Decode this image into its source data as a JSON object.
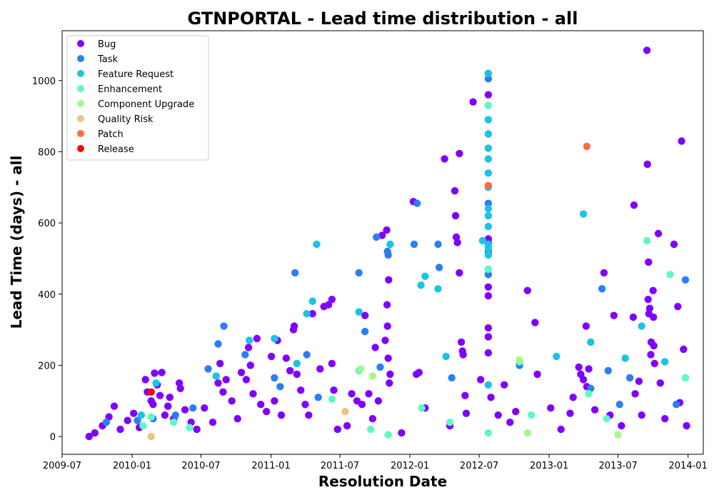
{
  "chart_data": {
    "type": "scatter",
    "title": "GTNPORTAL - Lead time distribution - all",
    "xlabel": "Resolution Date",
    "ylabel": "Lead Time (days) - all",
    "xlim": [
      "2009-07-01",
      "2014-02-10"
    ],
    "ylim": [
      -50,
      1140
    ],
    "xticks": [
      "2009-07-01",
      "2010-01-01",
      "2010-07-01",
      "2011-01-01",
      "2011-07-01",
      "2012-01-01",
      "2012-07-01",
      "2013-01-01",
      "2013-07-01",
      "2014-01-01"
    ],
    "xtick_labels": [
      "2009-07",
      "2010-01",
      "2010-07",
      "2011-01",
      "2011-07",
      "2012-01",
      "2012-07",
      "2013-01",
      "2013-07",
      "2014-01"
    ],
    "yticks": [
      0,
      200,
      400,
      600,
      800,
      1000
    ],
    "legend_position": "top-left",
    "grid": false,
    "series": [
      {
        "name": "Bug",
        "color": "#8000ff",
        "points": [
          [
            "2009-09-10",
            0
          ],
          [
            "2009-09-25",
            10
          ],
          [
            "2009-10-15",
            30
          ],
          [
            "2009-11-01",
            55
          ],
          [
            "2009-11-15",
            85
          ],
          [
            "2009-12-01",
            20
          ],
          [
            "2009-12-20",
            45
          ],
          [
            "2010-01-05",
            65
          ],
          [
            "2010-01-20",
            25
          ],
          [
            "2010-02-05",
            160
          ],
          [
            "2010-02-10",
            125
          ],
          [
            "2010-02-20",
            100
          ],
          [
            "2010-02-25",
            90
          ],
          [
            "2010-03-01",
            178
          ],
          [
            "2010-03-08",
            145
          ],
          [
            "2010-03-15",
            115
          ],
          [
            "2010-03-20",
            180
          ],
          [
            "2010-03-28",
            60
          ],
          [
            "2010-04-05",
            85
          ],
          [
            "2010-04-10",
            110
          ],
          [
            "2010-04-20",
            50
          ],
          [
            "2010-05-05",
            150
          ],
          [
            "2010-05-08",
            135
          ],
          [
            "2010-05-20",
            75
          ],
          [
            "2010-06-05",
            40
          ],
          [
            "2010-06-20",
            20
          ],
          [
            "2010-07-10",
            80
          ],
          [
            "2010-08-01",
            40
          ],
          [
            "2010-08-15",
            150
          ],
          [
            "2010-08-20",
            205
          ],
          [
            "2010-08-28",
            125
          ],
          [
            "2010-09-05",
            160
          ],
          [
            "2010-09-20",
            100
          ],
          [
            "2010-10-05",
            50
          ],
          [
            "2010-10-15",
            180
          ],
          [
            "2010-10-28",
            160
          ],
          [
            "2010-11-03",
            250
          ],
          [
            "2010-11-08",
            200
          ],
          [
            "2010-11-15",
            120
          ],
          [
            "2010-11-25",
            275
          ],
          [
            "2010-12-05",
            90
          ],
          [
            "2010-12-20",
            70
          ],
          [
            "2011-01-02",
            225
          ],
          [
            "2011-01-10",
            100
          ],
          [
            "2011-01-18",
            270
          ],
          [
            "2011-01-28",
            60
          ],
          [
            "2011-02-10",
            220
          ],
          [
            "2011-02-20",
            185
          ],
          [
            "2011-03-01",
            300
          ],
          [
            "2011-03-03",
            310
          ],
          [
            "2011-03-10",
            175
          ],
          [
            "2011-03-20",
            130
          ],
          [
            "2011-04-01",
            90
          ],
          [
            "2011-04-10",
            60
          ],
          [
            "2011-04-20",
            345
          ],
          [
            "2011-05-10",
            190
          ],
          [
            "2011-05-20",
            365
          ],
          [
            "2011-06-01",
            370
          ],
          [
            "2011-06-10",
            385
          ],
          [
            "2011-06-10",
            205
          ],
          [
            "2011-06-15",
            130
          ],
          [
            "2011-06-25",
            20
          ],
          [
            "2011-07-20",
            30
          ],
          [
            "2011-08-01",
            120
          ],
          [
            "2011-08-15",
            100
          ],
          [
            "2011-08-28",
            90
          ],
          [
            "2011-09-05",
            340
          ],
          [
            "2011-09-15",
            120
          ],
          [
            "2011-09-25",
            50
          ],
          [
            "2011-10-02",
            250
          ],
          [
            "2011-10-10",
            100
          ],
          [
            "2011-10-20",
            565
          ],
          [
            "2011-10-28",
            270
          ],
          [
            "2011-11-01",
            580
          ],
          [
            "2011-11-02",
            370
          ],
          [
            "2011-11-03",
            310
          ],
          [
            "2011-11-05",
            220
          ],
          [
            "2011-11-06",
            440
          ],
          [
            "2011-11-08",
            150
          ],
          [
            "2011-11-10",
            175
          ],
          [
            "2011-12-10",
            10
          ],
          [
            "2012-01-10",
            660
          ],
          [
            "2012-01-18",
            175
          ],
          [
            "2012-01-25",
            180
          ],
          [
            "2012-02-10",
            80
          ],
          [
            "2012-04-01",
            780
          ],
          [
            "2012-04-15",
            30
          ],
          [
            "2012-04-28",
            690
          ],
          [
            "2012-04-30",
            620
          ],
          [
            "2012-05-02",
            560
          ],
          [
            "2012-05-05",
            545
          ],
          [
            "2012-05-10",
            795
          ],
          [
            "2012-05-10",
            460
          ],
          [
            "2012-05-15",
            265
          ],
          [
            "2012-05-18",
            240
          ],
          [
            "2012-05-20",
            230
          ],
          [
            "2012-05-25",
            115
          ],
          [
            "2012-05-28",
            65
          ],
          [
            "2012-06-15",
            940
          ],
          [
            "2012-07-05",
            160
          ],
          [
            "2012-07-25",
            960
          ],
          [
            "2012-07-25",
            555
          ],
          [
            "2012-07-25",
            545
          ],
          [
            "2012-07-25",
            420
          ],
          [
            "2012-07-25",
            395
          ],
          [
            "2012-07-25",
            305
          ],
          [
            "2012-07-25",
            280
          ],
          [
            "2012-07-25",
            235
          ],
          [
            "2012-08-01",
            110
          ],
          [
            "2012-08-20",
            60
          ],
          [
            "2012-09-05",
            145
          ],
          [
            "2012-09-20",
            40
          ],
          [
            "2012-10-05",
            70
          ],
          [
            "2012-11-05",
            410
          ],
          [
            "2012-11-25",
            320
          ],
          [
            "2012-12-01",
            175
          ],
          [
            "2013-01-05",
            80
          ],
          [
            "2013-02-01",
            20
          ],
          [
            "2013-02-25",
            65
          ],
          [
            "2013-03-05",
            110
          ],
          [
            "2013-03-20",
            195
          ],
          [
            "2013-03-25",
            175
          ],
          [
            "2013-04-01",
            160
          ],
          [
            "2013-04-08",
            310
          ],
          [
            "2013-04-10",
            140
          ],
          [
            "2013-04-15",
            190
          ],
          [
            "2013-05-01",
            75
          ],
          [
            "2013-05-25",
            460
          ],
          [
            "2013-06-10",
            60
          ],
          [
            "2013-06-20",
            340
          ],
          [
            "2013-07-10",
            30
          ],
          [
            "2013-08-10",
            335
          ],
          [
            "2013-08-12",
            650
          ],
          [
            "2013-08-15",
            120
          ],
          [
            "2013-08-25",
            155
          ],
          [
            "2013-09-01",
            60
          ],
          [
            "2013-09-15",
            1085
          ],
          [
            "2013-09-16",
            765
          ],
          [
            "2013-09-18",
            385
          ],
          [
            "2013-09-19",
            490
          ],
          [
            "2013-09-20",
            345
          ],
          [
            "2013-09-22",
            360
          ],
          [
            "2013-09-25",
            230
          ],
          [
            "2013-09-26",
            265
          ],
          [
            "2013-10-01",
            410
          ],
          [
            "2013-10-02",
            335
          ],
          [
            "2013-10-03",
            255
          ],
          [
            "2013-10-05",
            205
          ],
          [
            "2013-10-15",
            570
          ],
          [
            "2013-10-20",
            150
          ],
          [
            "2013-11-01",
            50
          ],
          [
            "2013-11-25",
            540
          ],
          [
            "2013-12-05",
            365
          ],
          [
            "2013-12-10",
            95
          ],
          [
            "2013-12-15",
            830
          ],
          [
            "2013-12-20",
            245
          ],
          [
            "2013-12-28",
            30
          ]
        ]
      },
      {
        "name": "Task",
        "color": "#2c7ef7",
        "points": [
          [
            "2009-10-25",
            40
          ],
          [
            "2010-01-15",
            45
          ],
          [
            "2010-02-25",
            50
          ],
          [
            "2010-04-25",
            60
          ],
          [
            "2010-06-10",
            80
          ],
          [
            "2010-07-20",
            190
          ],
          [
            "2010-08-15",
            260
          ],
          [
            "2010-08-30",
            310
          ],
          [
            "2010-10-25",
            230
          ],
          [
            "2011-01-10",
            165
          ],
          [
            "2011-01-25",
            140
          ],
          [
            "2011-03-05",
            460
          ],
          [
            "2011-04-05",
            230
          ],
          [
            "2011-05-05",
            110
          ],
          [
            "2011-08-20",
            460
          ],
          [
            "2011-09-05",
            295
          ],
          [
            "2011-10-05",
            560
          ],
          [
            "2011-10-15",
            195
          ],
          [
            "2011-11-03",
            520
          ],
          [
            "2011-11-05",
            510
          ],
          [
            "2012-01-12",
            540
          ],
          [
            "2012-01-20",
            655
          ],
          [
            "2012-03-15",
            540
          ],
          [
            "2012-03-18",
            475
          ],
          [
            "2012-04-20",
            165
          ],
          [
            "2012-07-25",
            1020
          ],
          [
            "2012-07-25",
            1005
          ],
          [
            "2012-07-25",
            655
          ],
          [
            "2012-07-25",
            520
          ],
          [
            "2012-07-25",
            470
          ],
          [
            "2012-07-25",
            455
          ],
          [
            "2012-10-15",
            200
          ],
          [
            "2013-04-20",
            135
          ],
          [
            "2013-05-20",
            415
          ],
          [
            "2013-06-05",
            185
          ],
          [
            "2013-07-05",
            90
          ],
          [
            "2013-08-01",
            165
          ],
          [
            "2013-12-01",
            90
          ],
          [
            "2013-12-25",
            440
          ]
        ]
      },
      {
        "name": "Feature Request",
        "color": "#1bc3e6",
        "points": [
          [
            "2010-01-25",
            60
          ],
          [
            "2010-03-05",
            150
          ],
          [
            "2010-08-10",
            170
          ],
          [
            "2010-11-05",
            270
          ],
          [
            "2011-01-10",
            275
          ],
          [
            "2011-03-10",
            205
          ],
          [
            "2011-04-05",
            345
          ],
          [
            "2011-04-20",
            380
          ],
          [
            "2011-05-01",
            540
          ],
          [
            "2011-08-20",
            350
          ],
          [
            "2011-11-10",
            540
          ],
          [
            "2012-01-30",
            425
          ],
          [
            "2012-02-10",
            450
          ],
          [
            "2012-03-15",
            415
          ],
          [
            "2012-04-05",
            225
          ],
          [
            "2012-07-10",
            550
          ],
          [
            "2012-07-25",
            1020
          ],
          [
            "2012-07-25",
            930
          ],
          [
            "2012-07-25",
            890
          ],
          [
            "2012-07-25",
            850
          ],
          [
            "2012-07-25",
            810
          ],
          [
            "2012-07-25",
            780
          ],
          [
            "2012-07-25",
            740
          ],
          [
            "2012-07-25",
            700
          ],
          [
            "2012-07-25",
            640
          ],
          [
            "2012-07-25",
            620
          ],
          [
            "2012-07-25",
            590
          ],
          [
            "2012-07-25",
            540
          ],
          [
            "2012-07-25",
            530
          ],
          [
            "2012-07-25",
            510
          ],
          [
            "2012-07-25",
            145
          ],
          [
            "2013-01-20",
            225
          ],
          [
            "2013-04-01",
            625
          ],
          [
            "2013-04-20",
            265
          ],
          [
            "2013-07-20",
            220
          ],
          [
            "2013-09-01",
            310
          ],
          [
            "2013-11-01",
            210
          ]
        ]
      },
      {
        "name": "Enhancement",
        "color": "#60f8c5",
        "points": [
          [
            "2010-01-30",
            30
          ],
          [
            "2010-02-20",
            55
          ],
          [
            "2010-04-20",
            40
          ],
          [
            "2010-06-01",
            25
          ],
          [
            "2011-06-10",
            105
          ],
          [
            "2011-08-20",
            185
          ],
          [
            "2011-09-20",
            20
          ],
          [
            "2011-11-05",
            5
          ],
          [
            "2012-02-01",
            80
          ],
          [
            "2012-04-15",
            40
          ],
          [
            "2012-07-25",
            930
          ],
          [
            "2012-07-25",
            470
          ],
          [
            "2012-07-25",
            10
          ],
          [
            "2012-10-15",
            210
          ],
          [
            "2012-11-15",
            60
          ],
          [
            "2013-04-15",
            120
          ],
          [
            "2013-06-01",
            50
          ],
          [
            "2013-09-15",
            550
          ],
          [
            "2013-11-15",
            455
          ],
          [
            "2013-12-25",
            165
          ]
        ]
      },
      {
        "name": "Component  Upgrade",
        "color": "#a5f88e",
        "points": [
          [
            "2011-09-25",
            170
          ],
          [
            "2011-08-25",
            190
          ],
          [
            "2012-10-15",
            215
          ],
          [
            "2012-11-05",
            10
          ],
          [
            "2013-07-01",
            5
          ]
        ]
      },
      {
        "name": "Quality Risk",
        "color": "#ebc47f",
        "points": [
          [
            "2010-02-20",
            0
          ],
          [
            "2011-07-15",
            70
          ]
        ]
      },
      {
        "name": "Patch",
        "color": "#ff6c3c",
        "points": [
          [
            "2012-07-25",
            705
          ],
          [
            "2013-04-10",
            815
          ]
        ]
      },
      {
        "name": "Release",
        "color": "#ff0000",
        "points": [
          [
            "2010-02-20",
            125
          ]
        ]
      }
    ]
  }
}
